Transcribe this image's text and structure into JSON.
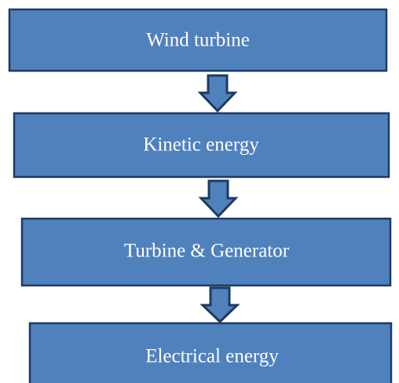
{
  "nodes": [
    {
      "label": "Wind turbine"
    },
    {
      "label": "Kinetic energy"
    },
    {
      "label": "Turbine & Generator"
    },
    {
      "label": "Electrical energy"
    }
  ]
}
